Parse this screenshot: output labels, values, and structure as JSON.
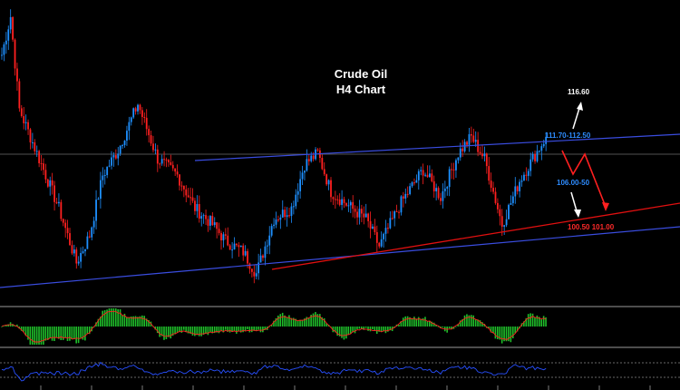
{
  "chart_data": {
    "type": "candlestick",
    "title": "Crude Oil",
    "subtitle": "H4 Chart",
    "xlabel": "",
    "ylabel": "",
    "ylim": [
      95,
      123
    ],
    "grid": false,
    "panels": [
      "price",
      "macd-histogram",
      "rsi"
    ],
    "colors": {
      "background": "#000000",
      "bull_candle": "#1e90ff",
      "bear_candle": "#ff2020",
      "channel": "#3a4de0",
      "support": "#e01010",
      "macd_up": "#1fbf2a",
      "macd_down": "#1fbf2a",
      "signal_line": "#ff2020",
      "rsi_line": "#2850ff",
      "level_blue": "#2e8cff",
      "level_red": "#ff2a2a",
      "target_white": "#ffffff"
    },
    "pivots": [
      {
        "i": 0,
        "price": 118.0
      },
      {
        "i": 4,
        "price": 121.5
      },
      {
        "i": 8,
        "price": 113.0
      },
      {
        "i": 14,
        "price": 110.0
      },
      {
        "i": 26,
        "price": 104.0
      },
      {
        "i": 34,
        "price": 99.0
      },
      {
        "i": 40,
        "price": 101.5
      },
      {
        "i": 46,
        "price": 107.0
      },
      {
        "i": 53,
        "price": 109.3
      },
      {
        "i": 62,
        "price": 113.5
      },
      {
        "i": 71,
        "price": 108.5
      },
      {
        "i": 80,
        "price": 107.0
      },
      {
        "i": 88,
        "price": 104.0
      },
      {
        "i": 96,
        "price": 102.5
      },
      {
        "i": 102,
        "price": 101.0
      },
      {
        "i": 110,
        "price": 100.0
      },
      {
        "i": 116,
        "price": 98.0
      },
      {
        "i": 124,
        "price": 103.0
      },
      {
        "i": 132,
        "price": 104.0
      },
      {
        "i": 138,
        "price": 108.0
      },
      {
        "i": 144,
        "price": 109.0
      },
      {
        "i": 150,
        "price": 105.5
      },
      {
        "i": 158,
        "price": 104.2
      },
      {
        "i": 166,
        "price": 103.0
      },
      {
        "i": 172,
        "price": 100.5
      },
      {
        "i": 182,
        "price": 104.5
      },
      {
        "i": 192,
        "price": 107.5
      },
      {
        "i": 200,
        "price": 105.0
      },
      {
        "i": 208,
        "price": 109.0
      },
      {
        "i": 214,
        "price": 110.5
      },
      {
        "i": 220,
        "price": 108.5
      },
      {
        "i": 228,
        "price": 102.5
      },
      {
        "i": 236,
        "price": 106.5
      },
      {
        "i": 242,
        "price": 108.5
      },
      {
        "i": 248,
        "price": 110.5
      }
    ],
    "annotations": [
      {
        "text": "116.60",
        "type": "target"
      },
      {
        "text": "111.70-112.50",
        "type": "resistance"
      },
      {
        "text": "106.00-50",
        "type": "intermediate"
      },
      {
        "text": "100.50 101.00",
        "type": "support"
      }
    ]
  }
}
